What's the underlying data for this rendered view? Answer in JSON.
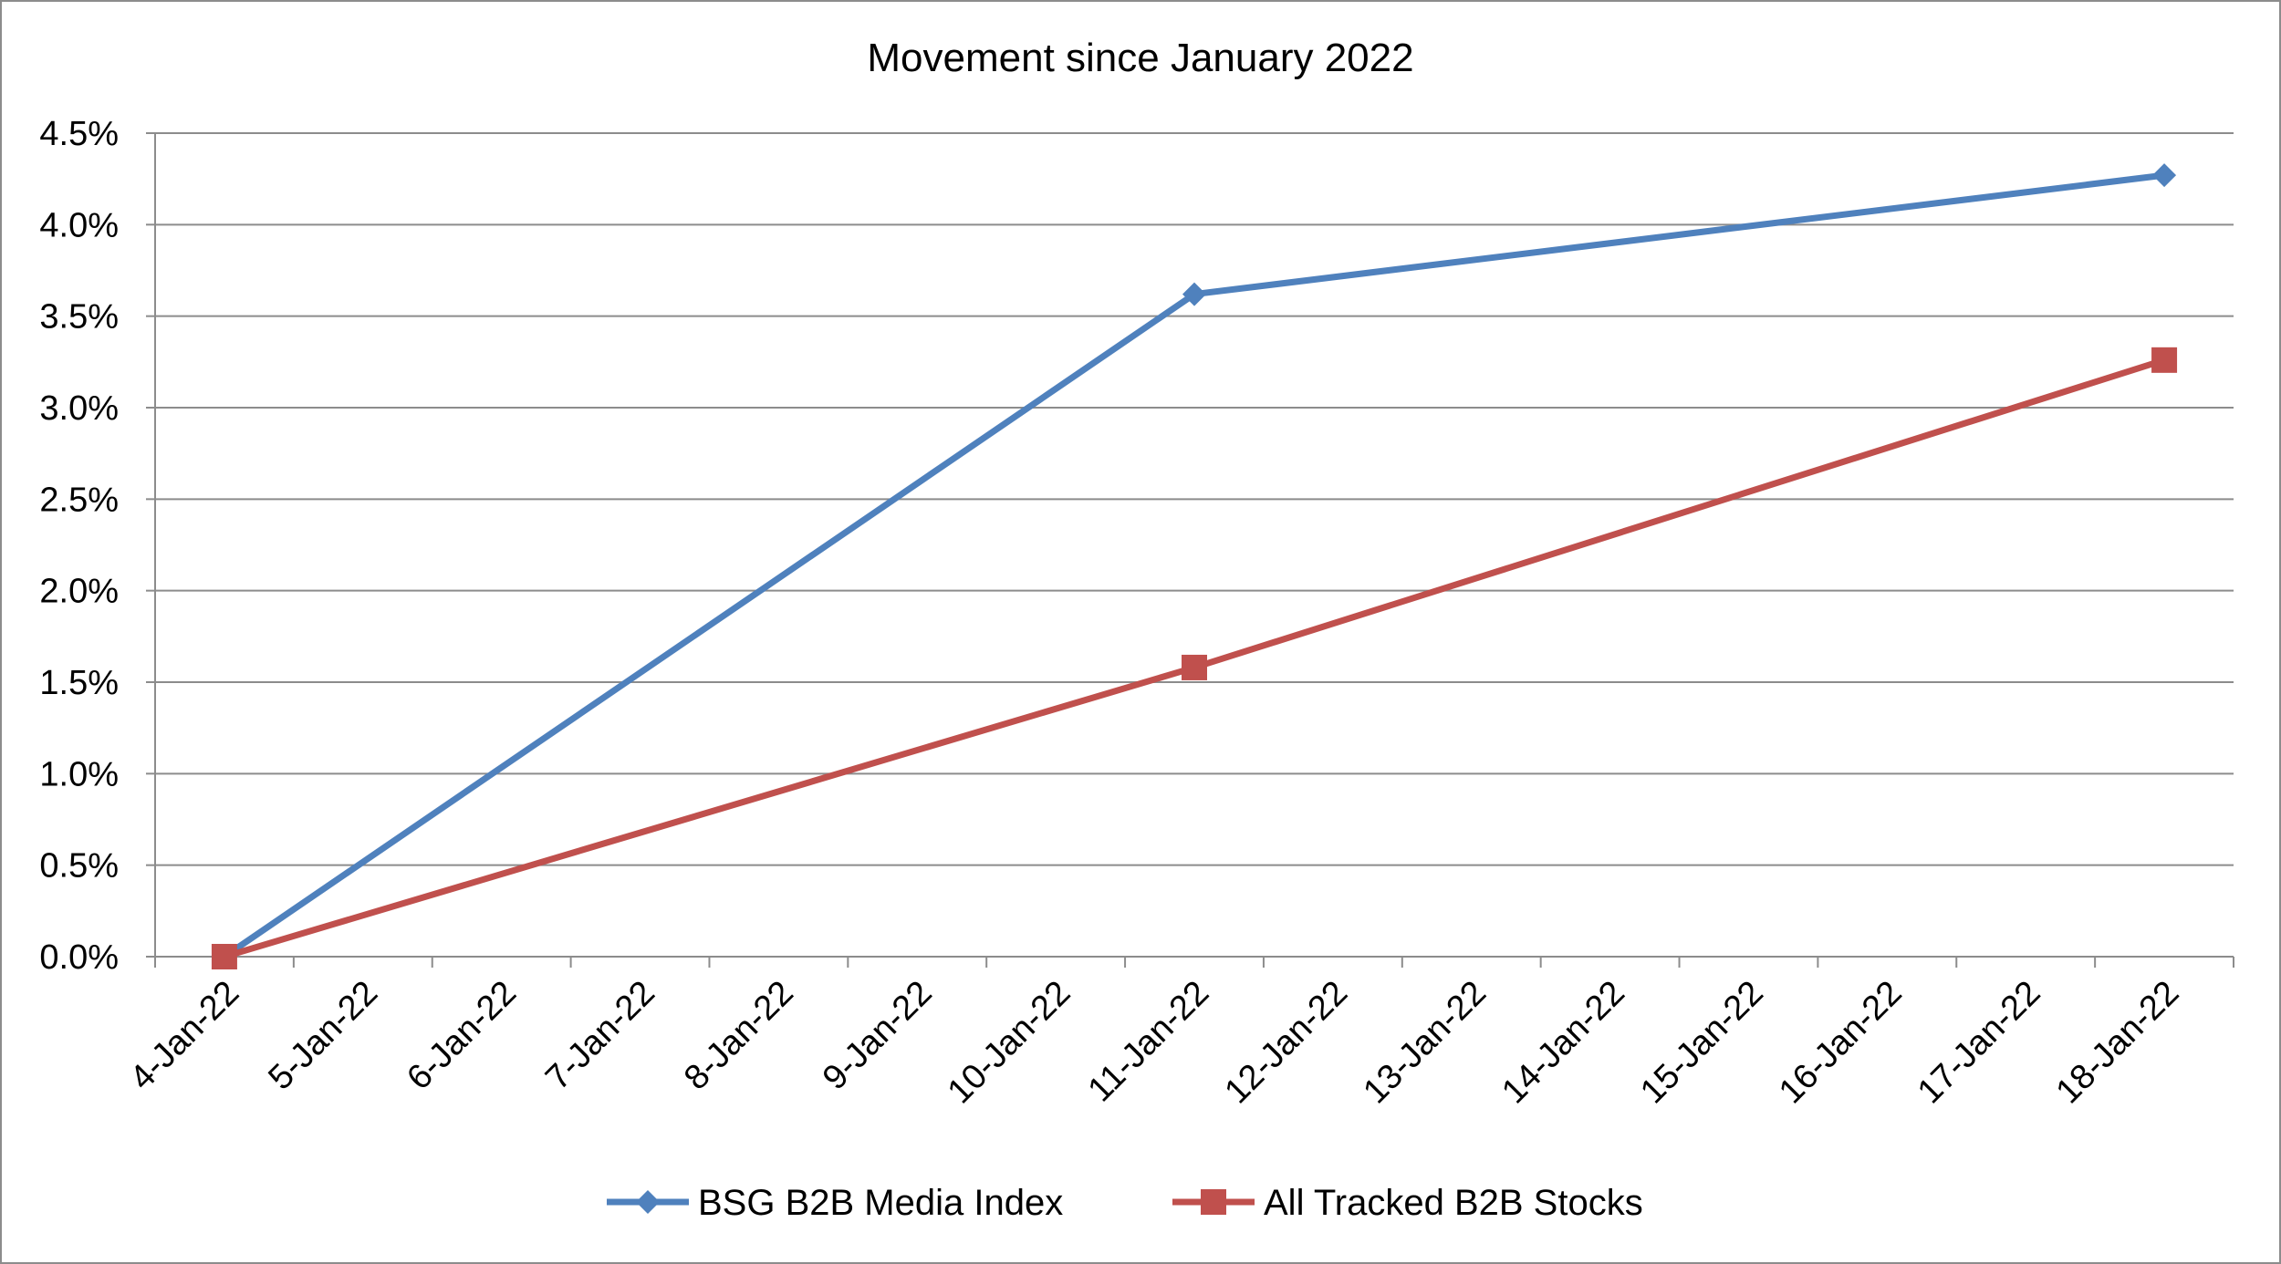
{
  "chart_data": {
    "type": "line",
    "title": "Movement since January 2022",
    "xlabel": "",
    "ylabel": "",
    "categories": [
      "4-Jan-22",
      "5-Jan-22",
      "6-Jan-22",
      "7-Jan-22",
      "8-Jan-22",
      "9-Jan-22",
      "10-Jan-22",
      "11-Jan-22",
      "12-Jan-22",
      "13-Jan-22",
      "14-Jan-22",
      "15-Jan-22",
      "16-Jan-22",
      "17-Jan-22",
      "18-Jan-22"
    ],
    "y_ticks": [
      "0.0%",
      "0.5%",
      "1.0%",
      "1.5%",
      "2.0%",
      "2.5%",
      "3.0%",
      "3.5%",
      "4.0%",
      "4.5%"
    ],
    "ylim": [
      0,
      4.5
    ],
    "y_unit": "%",
    "grid": true,
    "legend_position": "bottom",
    "series": [
      {
        "name": "BSG B2B Media Index",
        "color": "#4f81bd",
        "marker": "diamond",
        "points": [
          {
            "x": "4-Jan-22",
            "y": 0.0
          },
          {
            "x": "11-Jan-22",
            "y": 3.62
          },
          {
            "x": "18-Jan-22",
            "y": 4.27
          }
        ]
      },
      {
        "name": "All Tracked B2B Stocks",
        "color": "#c0504d",
        "marker": "square",
        "points": [
          {
            "x": "4-Jan-22",
            "y": 0.0
          },
          {
            "x": "11-Jan-22",
            "y": 1.58
          },
          {
            "x": "18-Jan-22",
            "y": 3.26
          }
        ]
      }
    ]
  }
}
